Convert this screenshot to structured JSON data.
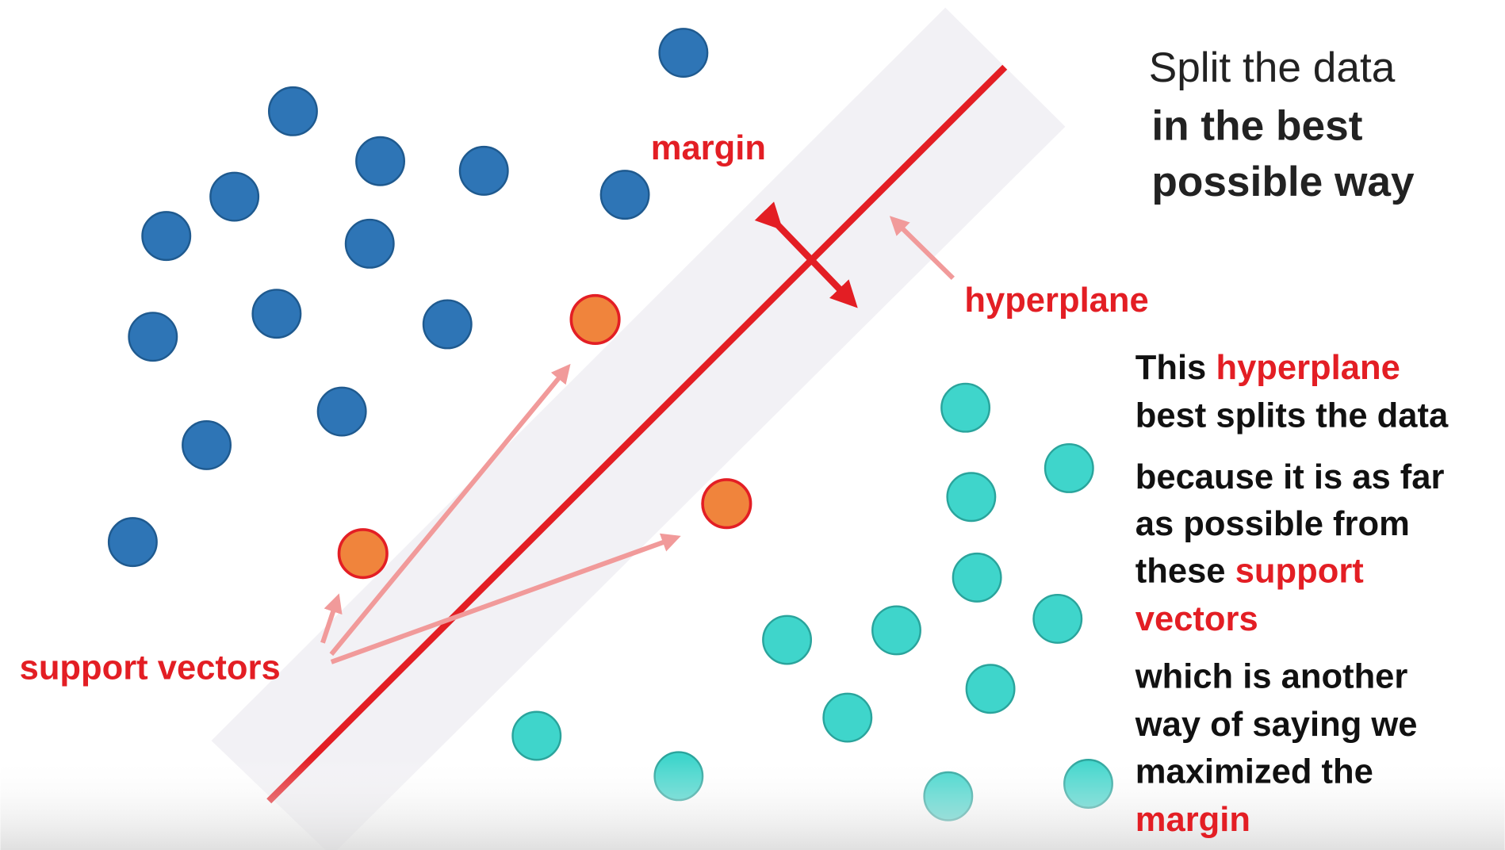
{
  "heading": [
    "Split the data",
    "in the best",
    "possible way"
  ],
  "labels": {
    "margin": "margin",
    "hyperplane": "hyperplane",
    "support_vectors": "support vectors"
  },
  "explanation": [
    [
      {
        "text": "This"
      },
      {
        "text": "hyperplane",
        "highlight": true
      }
    ],
    [
      {
        "text": "best splits the data"
      }
    ],
    [
      {
        "text": "because it is as far"
      }
    ],
    [
      {
        "text": "as possible from"
      }
    ],
    [
      {
        "text": "these"
      },
      {
        "text": "support",
        "highlight": true
      }
    ],
    [
      {
        "text": "vectors",
        "highlight": true
      }
    ],
    [
      {
        "text": "which is another"
      }
    ],
    [
      {
        "text": "way of saying we"
      }
    ],
    [
      {
        "text": "maximized the"
      }
    ],
    [
      {
        "text": "margin",
        "highlight": true
      }
    ]
  ]
}
